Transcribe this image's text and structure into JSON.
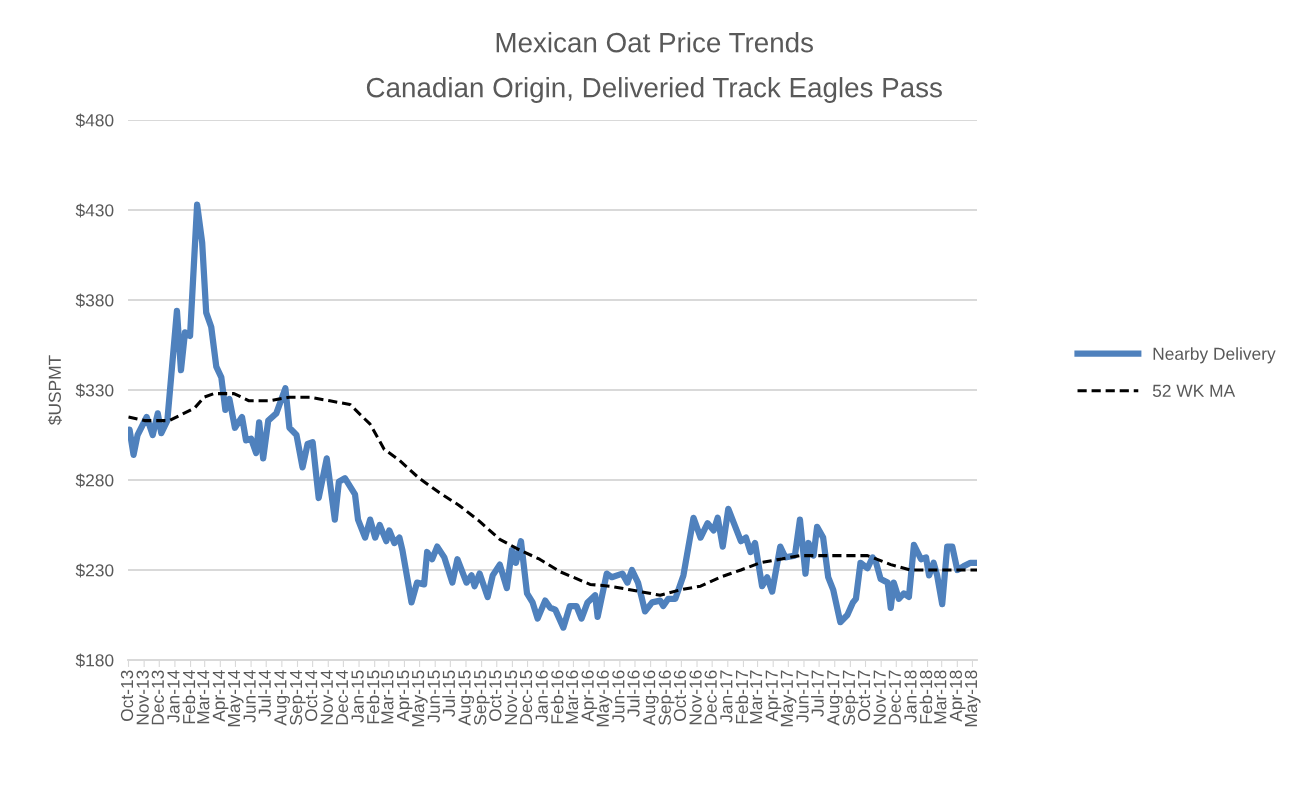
{
  "chart_data": {
    "type": "line",
    "title": "Mexican Oat Price Trends",
    "subtitle": "Canadian Origin, Deliveried Track Eagles Pass",
    "ylabel": "$USPMT",
    "xlim": [
      "2013-09-30",
      "2018-05-10"
    ],
    "xticks": [
      {
        "value": "2013-10-01",
        "label": "Oct-13"
      },
      {
        "value": "2013-11-01",
        "label": "Nov-13"
      },
      {
        "value": "2013-12-01",
        "label": "Dec-13"
      },
      {
        "value": "2014-01-01",
        "label": "Jan-14"
      },
      {
        "value": "2014-02-01",
        "label": "Feb-14"
      },
      {
        "value": "2014-03-01",
        "label": "Mar-14"
      },
      {
        "value": "2014-04-01",
        "label": "Apr-14"
      },
      {
        "value": "2014-05-01",
        "label": "May-14"
      },
      {
        "value": "2014-06-01",
        "label": "Jun-14"
      },
      {
        "value": "2014-07-01",
        "label": "Jul-14"
      },
      {
        "value": "2014-08-01",
        "label": "Aug-14"
      },
      {
        "value": "2014-09-01",
        "label": "Sep-14"
      },
      {
        "value": "2014-10-01",
        "label": "Oct-14"
      },
      {
        "value": "2014-11-01",
        "label": "Nov-14"
      },
      {
        "value": "2014-12-01",
        "label": "Dec-14"
      },
      {
        "value": "2015-01-01",
        "label": "Jan-15"
      },
      {
        "value": "2015-02-01",
        "label": "Feb-15"
      },
      {
        "value": "2015-03-01",
        "label": "Mar-15"
      },
      {
        "value": "2015-04-01",
        "label": "Apr-15"
      },
      {
        "value": "2015-05-01",
        "label": "May-15"
      },
      {
        "value": "2015-06-01",
        "label": "Jun-15"
      },
      {
        "value": "2015-07-01",
        "label": "Jul-15"
      },
      {
        "value": "2015-08-01",
        "label": "Aug-15"
      },
      {
        "value": "2015-09-01",
        "label": "Sep-15"
      },
      {
        "value": "2015-10-01",
        "label": "Oct-15"
      },
      {
        "value": "2015-11-01",
        "label": "Nov-15"
      },
      {
        "value": "2015-12-01",
        "label": "Dec-15"
      },
      {
        "value": "2016-01-01",
        "label": "Jan-16"
      },
      {
        "value": "2016-02-01",
        "label": "Feb-16"
      },
      {
        "value": "2016-03-01",
        "label": "Mar-16"
      },
      {
        "value": "2016-04-01",
        "label": "Apr-16"
      },
      {
        "value": "2016-05-01",
        "label": "May-16"
      },
      {
        "value": "2016-06-01",
        "label": "Jun-16"
      },
      {
        "value": "2016-07-01",
        "label": "Jul-16"
      },
      {
        "value": "2016-08-01",
        "label": "Aug-16"
      },
      {
        "value": "2016-09-01",
        "label": "Sep-16"
      },
      {
        "value": "2016-10-01",
        "label": "Oct-16"
      },
      {
        "value": "2016-11-01",
        "label": "Nov-16"
      },
      {
        "value": "2016-12-01",
        "label": "Dec-16"
      },
      {
        "value": "2017-01-01",
        "label": "Jan-17"
      },
      {
        "value": "2017-02-01",
        "label": "Feb-17"
      },
      {
        "value": "2017-03-01",
        "label": "Mar-17"
      },
      {
        "value": "2017-04-01",
        "label": "Apr-17"
      },
      {
        "value": "2017-05-01",
        "label": "May-17"
      },
      {
        "value": "2017-06-01",
        "label": "Jun-17"
      },
      {
        "value": "2017-07-01",
        "label": "Jul-17"
      },
      {
        "value": "2017-08-01",
        "label": "Aug-17"
      },
      {
        "value": "2017-09-01",
        "label": "Sep-17"
      },
      {
        "value": "2017-10-01",
        "label": "Oct-17"
      },
      {
        "value": "2017-11-01",
        "label": "Nov-17"
      },
      {
        "value": "2017-12-01",
        "label": "Dec-17"
      },
      {
        "value": "2018-01-01",
        "label": "Jan-18"
      },
      {
        "value": "2018-02-01",
        "label": "Feb-18"
      },
      {
        "value": "2018-03-01",
        "label": "Mar-18"
      },
      {
        "value": "2018-04-01",
        "label": "Apr-18"
      },
      {
        "value": "2018-05-01",
        "label": "May-18"
      }
    ],
    "ylim": [
      180,
      480
    ],
    "yticks": [
      {
        "value": 180,
        "label": "$180"
      },
      {
        "value": 230,
        "label": "$230"
      },
      {
        "value": 280,
        "label": "$280"
      },
      {
        "value": 330,
        "label": "$330"
      },
      {
        "value": 380,
        "label": "$380"
      },
      {
        "value": 430,
        "label": "$430"
      },
      {
        "value": 480,
        "label": "$480"
      }
    ],
    "grid": "y",
    "legend": "right",
    "series": [
      {
        "name": "Nearby Delivery",
        "color": "#4f81bd",
        "line_style": "solid",
        "x": [
          "2013-10-03",
          "2013-10-11",
          "2013-10-19",
          "2013-11-06",
          "2013-11-18",
          "2013-11-28",
          "2013-12-05",
          "2013-12-17",
          "2014-01-05",
          "2014-01-13",
          "2014-01-21",
          "2014-01-31",
          "2014-02-14",
          "2014-02-24",
          "2014-03-04",
          "2014-03-14",
          "2014-03-24",
          "2014-04-03",
          "2014-04-11",
          "2014-04-19",
          "2014-04-30",
          "2014-05-14",
          "2014-05-22",
          "2014-06-01",
          "2014-06-11",
          "2014-06-17",
          "2014-06-25",
          "2014-07-05",
          "2014-07-21",
          "2014-08-08",
          "2014-08-16",
          "2014-08-30",
          "2014-09-11",
          "2014-09-21",
          "2014-10-01",
          "2014-10-13",
          "2014-10-29",
          "2014-11-14",
          "2014-11-22",
          "2014-12-04",
          "2014-12-24",
          "2014-12-30",
          "2015-01-13",
          "2015-01-23",
          "2015-02-02",
          "2015-02-11",
          "2015-02-24",
          "2015-03-02",
          "2015-03-12",
          "2015-03-22",
          "2015-03-28",
          "2015-04-15",
          "2015-04-26",
          "2015-05-10",
          "2015-05-16",
          "2015-05-26",
          "2015-06-05",
          "2015-06-19",
          "2015-07-05",
          "2015-07-15",
          "2015-08-02",
          "2015-08-12",
          "2015-08-18",
          "2015-08-28",
          "2015-09-13",
          "2015-09-23",
          "2015-10-07",
          "2015-10-21",
          "2015-10-31",
          "2015-11-08",
          "2015-11-18",
          "2015-11-30",
          "2015-12-11",
          "2015-12-21",
          "2016-01-05",
          "2016-01-15",
          "2016-01-25",
          "2016-02-10",
          "2016-02-23",
          "2016-03-07",
          "2016-03-17",
          "2016-03-29",
          "2016-04-13",
          "2016-04-18",
          "2016-05-06",
          "2016-05-16",
          "2016-06-06",
          "2016-06-16",
          "2016-06-25",
          "2016-07-07",
          "2016-07-21",
          "2016-08-04",
          "2016-08-20",
          "2016-08-26",
          "2016-09-05",
          "2016-09-19",
          "2016-10-05",
          "2016-10-15",
          "2016-10-25",
          "2016-11-08",
          "2016-11-22",
          "2016-12-04",
          "2016-12-12",
          "2016-12-22",
          "2017-01-02",
          "2017-01-13",
          "2017-01-27",
          "2017-02-06",
          "2017-02-15",
          "2017-02-24",
          "2017-03-10",
          "2017-03-20",
          "2017-03-30",
          "2017-04-15",
          "2017-04-25",
          "2017-05-14",
          "2017-05-24",
          "2017-06-04",
          "2017-06-10",
          "2017-06-20",
          "2017-06-27",
          "2017-07-09",
          "2017-07-19",
          "2017-07-29",
          "2017-08-12",
          "2017-08-26",
          "2017-09-06",
          "2017-09-12",
          "2017-09-21",
          "2017-10-05",
          "2017-10-15",
          "2017-10-21",
          "2017-10-31",
          "2017-11-14",
          "2017-11-20",
          "2017-11-26",
          "2017-12-06",
          "2017-12-16",
          "2017-12-26",
          "2018-01-05",
          "2018-01-19",
          "2018-01-29",
          "2018-02-04",
          "2018-02-13",
          "2018-02-20",
          "2018-03-02",
          "2018-03-12",
          "2018-03-22",
          "2018-04-01",
          "2018-04-13",
          "2018-04-27",
          "2018-05-10"
        ],
        "values": [
          308,
          294,
          305,
          315,
          305,
          317,
          306,
          313,
          374,
          341,
          362,
          360,
          433,
          412,
          373,
          365,
          343,
          337,
          319,
          325,
          309,
          315,
          302,
          303,
          295,
          312,
          292,
          313,
          317,
          331,
          309,
          305,
          287,
          300,
          301,
          270,
          292,
          258,
          279,
          281,
          272,
          258,
          248,
          258,
          248,
          255,
          246,
          252,
          245,
          248,
          241,
          212,
          223,
          222,
          240,
          236,
          243,
          237,
          223,
          236,
          223,
          227,
          221,
          228,
          215,
          227,
          233,
          220,
          241,
          234,
          246,
          217,
          212,
          203,
          213,
          209,
          208,
          198,
          210,
          210,
          203,
          212,
          216,
          204,
          228,
          226,
          228,
          223,
          230,
          223,
          207,
          212,
          213,
          210,
          214,
          214,
          227,
          243,
          259,
          248,
          256,
          252,
          259,
          243,
          264,
          256,
          246,
          248,
          240,
          245,
          221,
          226,
          218,
          243,
          237,
          238,
          258,
          228,
          245,
          238,
          254,
          248,
          226,
          219,
          201,
          205,
          212,
          214,
          234,
          231,
          237,
          235,
          225,
          223,
          209,
          223,
          214,
          217,
          215,
          244,
          236,
          237,
          227,
          234,
          227,
          211,
          243,
          243,
          230,
          232,
          234,
          234
        ]
      },
      {
        "name": "52 WK MA",
        "color": "#000000",
        "line_style": "dashed",
        "x": [
          "2013-10-01",
          "2013-11-02",
          "2013-12-21",
          "2014-02-09",
          "2014-02-28",
          "2014-03-19",
          "2014-04-28",
          "2014-05-28",
          "2014-07-07",
          "2014-08-16",
          "2014-09-25",
          "2014-11-04",
          "2014-12-14",
          "2015-01-23",
          "2015-02-20",
          "2015-03-22",
          "2015-04-30",
          "2015-06-09",
          "2015-07-18",
          "2015-08-28",
          "2015-10-07",
          "2015-11-16",
          "2015-12-25",
          "2016-02-04",
          "2016-04-03",
          "2016-05-12",
          "2016-06-21",
          "2016-08-20",
          "2016-09-29",
          "2016-11-08",
          "2016-12-17",
          "2017-01-27",
          "2017-03-06",
          "2017-04-15",
          "2017-05-24",
          "2017-07-03",
          "2017-09-02",
          "2017-10-05",
          "2017-11-20",
          "2017-12-29",
          "2018-03-18",
          "2018-05-10"
        ],
        "values": [
          315,
          313,
          313,
          320,
          326,
          328,
          328,
          324,
          324,
          326,
          326,
          324,
          322,
          311,
          297,
          291,
          281,
          273,
          266,
          257,
          247,
          241,
          236,
          229,
          222,
          221,
          219,
          216,
          219,
          221,
          226,
          230,
          234,
          236,
          238,
          238,
          238,
          238,
          233,
          230,
          230,
          230
        ]
      }
    ]
  }
}
